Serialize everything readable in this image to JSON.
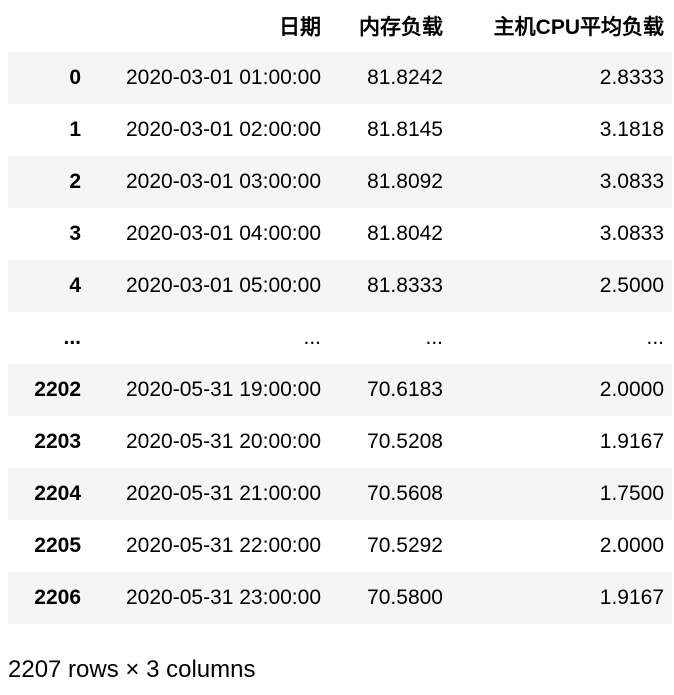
{
  "table": {
    "columns": [
      "",
      "日期",
      "内存负载",
      "主机CPU平均负载"
    ],
    "rows": [
      {
        "index": "0",
        "date": "2020-03-01 01:00:00",
        "memory": "81.8242",
        "cpu": "2.8333"
      },
      {
        "index": "1",
        "date": "2020-03-01 02:00:00",
        "memory": "81.8145",
        "cpu": "3.1818"
      },
      {
        "index": "2",
        "date": "2020-03-01 03:00:00",
        "memory": "81.8092",
        "cpu": "3.0833"
      },
      {
        "index": "3",
        "date": "2020-03-01 04:00:00",
        "memory": "81.8042",
        "cpu": "3.0833"
      },
      {
        "index": "4",
        "date": "2020-03-01 05:00:00",
        "memory": "81.8333",
        "cpu": "2.5000"
      },
      {
        "index": "...",
        "date": "...",
        "memory": "...",
        "cpu": "..."
      },
      {
        "index": "2202",
        "date": "2020-05-31 19:00:00",
        "memory": "70.6183",
        "cpu": "2.0000"
      },
      {
        "index": "2203",
        "date": "2020-05-31 20:00:00",
        "memory": "70.5208",
        "cpu": "1.9167"
      },
      {
        "index": "2204",
        "date": "2020-05-31 21:00:00",
        "memory": "70.5608",
        "cpu": "1.7500"
      },
      {
        "index": "2205",
        "date": "2020-05-31 22:00:00",
        "memory": "70.5292",
        "cpu": "2.0000"
      },
      {
        "index": "2206",
        "date": "2020-05-31 23:00:00",
        "memory": "70.5800",
        "cpu": "1.9167"
      }
    ]
  },
  "footer": {
    "shape_text": "2207 rows × 3 columns"
  }
}
